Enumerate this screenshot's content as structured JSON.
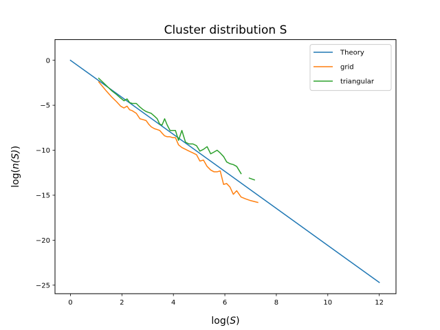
{
  "chart_data": {
    "type": "line",
    "title": "Cluster distribution S",
    "xlabel_prefix": "log(",
    "xlabel_var": "S",
    "xlabel_suffix": ")",
    "ylabel_prefix": "log(",
    "ylabel_var": "n(S)",
    "ylabel_suffix": ")",
    "xlim": [
      -0.6,
      12.65
    ],
    "ylim": [
      -25.95,
      2.3
    ],
    "xticks": [
      0,
      2,
      4,
      6,
      8,
      10,
      12
    ],
    "yticks": [
      0,
      -5,
      -10,
      -15,
      -20,
      -25
    ],
    "xtick_labels": [
      "0",
      "2",
      "4",
      "6",
      "8",
      "10",
      "12"
    ],
    "ytick_labels": [
      "0",
      "−5",
      "−10",
      "−15",
      "−20",
      "−25"
    ],
    "grid": false,
    "legend_position": "top-right",
    "series": [
      {
        "name": "Theory",
        "color": "#1f77b4",
        "points": [
          [
            0,
            0
          ],
          [
            12,
            -24.7
          ]
        ]
      },
      {
        "name": "grid",
        "color": "#ff7f0e",
        "points": [
          [
            1.1,
            -2.4
          ],
          [
            1.39,
            -3.4
          ],
          [
            1.61,
            -4.1
          ],
          [
            1.79,
            -4.6
          ],
          [
            1.95,
            -5.1
          ],
          [
            2.08,
            -5.3
          ],
          [
            2.2,
            -5.1
          ],
          [
            2.3,
            -5.5
          ],
          [
            2.4,
            -5.6
          ],
          [
            2.56,
            -5.9
          ],
          [
            2.7,
            -6.5
          ],
          [
            2.83,
            -6.6
          ],
          [
            2.94,
            -6.7
          ],
          [
            3.04,
            -7.1
          ],
          [
            3.14,
            -7.4
          ],
          [
            3.26,
            -7.6
          ],
          [
            3.37,
            -7.7
          ],
          [
            3.47,
            -7.8
          ],
          [
            3.56,
            -8.1
          ],
          [
            3.66,
            -8.4
          ],
          [
            3.76,
            -8.5
          ],
          [
            3.87,
            -8.5
          ],
          [
            3.97,
            -8.6
          ],
          [
            4.08,
            -8.6
          ],
          [
            4.2,
            -9.4
          ],
          [
            4.33,
            -9.7
          ],
          [
            4.47,
            -9.9
          ],
          [
            4.61,
            -10.1
          ],
          [
            4.76,
            -10.3
          ],
          [
            4.9,
            -10.5
          ],
          [
            5.03,
            -11.2
          ],
          [
            5.17,
            -11.1
          ],
          [
            5.31,
            -11.8
          ],
          [
            5.45,
            -12.2
          ],
          [
            5.58,
            -12.4
          ],
          [
            5.7,
            -12.4
          ],
          [
            5.82,
            -12.3
          ],
          [
            5.95,
            -13.8
          ],
          [
            6.07,
            -13.7
          ],
          [
            6.2,
            -14.1
          ],
          [
            6.33,
            -14.9
          ],
          [
            6.46,
            -14.5
          ],
          [
            6.63,
            -15.2
          ],
          [
            6.8,
            -15.4
          ],
          [
            7.0,
            -15.6
          ],
          [
            7.28,
            -15.8
          ]
        ]
      },
      {
        "name": "triangular",
        "color": "#2ca02c",
        "segments": [
          [
            [
              1.1,
              -2.0
            ],
            [
              1.39,
              -2.8
            ],
            [
              1.61,
              -3.4
            ],
            [
              1.79,
              -3.8
            ],
            [
              1.95,
              -4.2
            ],
            [
              2.08,
              -4.5
            ],
            [
              2.2,
              -4.3
            ],
            [
              2.3,
              -4.7
            ],
            [
              2.4,
              -4.8
            ],
            [
              2.56,
              -4.8
            ],
            [
              2.7,
              -5.2
            ],
            [
              2.83,
              -5.5
            ],
            [
              2.94,
              -5.7
            ],
            [
              3.04,
              -5.8
            ],
            [
              3.14,
              -5.9
            ],
            [
              3.26,
              -6.2
            ],
            [
              3.37,
              -6.5
            ],
            [
              3.47,
              -7.1
            ],
            [
              3.56,
              -7.2
            ],
            [
              3.66,
              -6.5
            ],
            [
              3.76,
              -7.2
            ],
            [
              3.87,
              -7.8
            ],
            [
              3.97,
              -7.8
            ],
            [
              4.08,
              -7.8
            ],
            [
              4.2,
              -8.9
            ],
            [
              4.33,
              -7.8
            ],
            [
              4.47,
              -9.1
            ],
            [
              4.61,
              -9.3
            ],
            [
              4.76,
              -9.3
            ],
            [
              4.9,
              -9.5
            ],
            [
              5.03,
              -10.1
            ],
            [
              5.17,
              -9.9
            ],
            [
              5.31,
              -9.6
            ],
            [
              5.45,
              -10.4
            ],
            [
              5.58,
              -10.2
            ],
            [
              5.7,
              -10.0
            ],
            [
              5.82,
              -10.3
            ],
            [
              5.95,
              -10.7
            ],
            [
              6.07,
              -11.3
            ],
            [
              6.2,
              -11.5
            ],
            [
              6.33,
              -11.6
            ],
            [
              6.46,
              -11.8
            ],
            [
              6.63,
              -12.6
            ]
          ],
          [
            [
              6.95,
              -13.1
            ],
            [
              7.15,
              -13.3
            ]
          ]
        ]
      }
    ]
  }
}
